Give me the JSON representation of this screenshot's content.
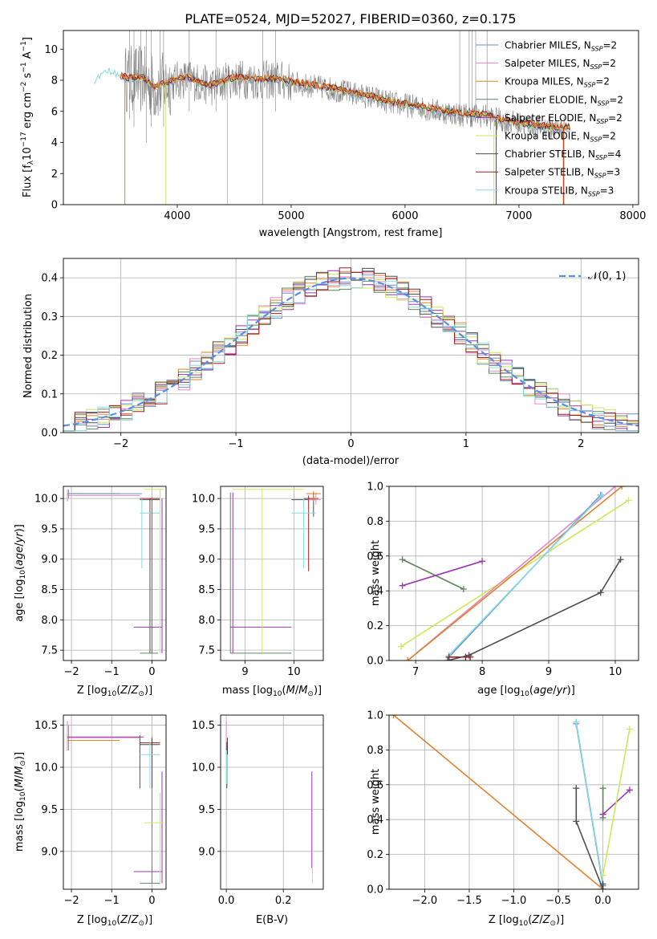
{
  "title": "PLATE=0524, MJD=52027, FIBERID=0360, z=0.175",
  "colors": {
    "chabrier_miles": "#6a8fd0",
    "salpeter_miles": "#e38ac4",
    "kroupa_miles": "#e0822e",
    "chabrier_elodie": "#5e8760",
    "salpeter_elodie": "#9b36b4",
    "kroupa_elodie": "#cde85a",
    "chabrier_stelib": "#4d4d4d",
    "salpeter_stelib": "#9c1b1b",
    "kroupa_stelib": "#86d9de",
    "data": "#808080",
    "normal": "#5b8ee0"
  },
  "chart_data": [
    {
      "type": "line",
      "xlabel": "wavelength [Angstrom, rest frame]",
      "ylabel": "Flux [f_λ10^-17 erg cm^-2 s^-1 A^-1]",
      "xlim": [
        3000,
        8050
      ],
      "ylim": [
        0,
        11.2
      ],
      "xticks": [
        4000,
        5000,
        6000,
        7000,
        8000
      ],
      "yticks": [
        0,
        2,
        4,
        6,
        8,
        10
      ],
      "grid": false,
      "legend": "top-right",
      "legend_entries": [
        {
          "name": "Chabrier MILES, N_SSP=2",
          "color_key": "chabrier_miles"
        },
        {
          "name": "Salpeter MILES, N_SSP=2",
          "color_key": "salpeter_miles"
        },
        {
          "name": "Kroupa MILES, N_SSP=2",
          "color_key": "kroupa_miles"
        },
        {
          "name": "Chabrier ELODIE, N_SSP=2",
          "color_key": "chabrier_elodie"
        },
        {
          "name": "Salpeter ELODIE, N_SSP=2",
          "color_key": "salpeter_elodie"
        },
        {
          "name": "Kroupa ELODIE, N_SSP=2",
          "color_key": "kroupa_elodie"
        },
        {
          "name": "Chabrier STELIB, N_SSP=4",
          "color_key": "chabrier_stelib"
        },
        {
          "name": "Salpeter STELIB, N_SSP=3",
          "color_key": "salpeter_stelib"
        },
        {
          "name": "Kroupa STELIB, N_SSP=3",
          "color_key": "kroupa_stelib"
        }
      ],
      "continuum_x": [
        3270,
        3400,
        3550,
        3700,
        3800,
        3950,
        4100,
        4200,
        4300,
        4500,
        4700,
        4900,
        5100,
        5300,
        5500,
        5700,
        5900,
        6100,
        6300,
        6500,
        6700,
        6900,
        7100,
        7300,
        7400
      ],
      "continuum_y": [
        8.0,
        8.6,
        8.1,
        8.1,
        7.5,
        7.9,
        8.1,
        7.8,
        7.6,
        8.1,
        8.0,
        8.0,
        7.7,
        7.5,
        7.2,
        6.9,
        6.5,
        6.3,
        6.0,
        5.8,
        5.7,
        5.3,
        5.1,
        4.9,
        4.9
      ]
    },
    {
      "type": "bar",
      "xlabel": "(data-model)/error",
      "ylabel": "Normed distribution",
      "xlim": [
        -2.5,
        2.5
      ],
      "ylim": [
        0,
        0.45
      ],
      "xticks": [
        -2,
        -1,
        0,
        1,
        2
      ],
      "yticks": [
        0.0,
        0.1,
        0.2,
        0.3,
        0.4
      ],
      "grid": true,
      "legend": "top-right",
      "legend_label": "𝒩(0, 1)",
      "bin_width": 0.1
    },
    {
      "type": "scatter",
      "xlabel": "Z [log10(Z/Z⊙)]",
      "ylabel": "age  [log10(age/yr)]",
      "xlim": [
        -2.2,
        0.35
      ],
      "ylim": [
        7.33,
        10.2
      ],
      "xticks": [
        -2,
        -1,
        0
      ],
      "yticks": [
        7.5,
        8.0,
        8.5,
        9.0,
        9.5,
        10.0
      ],
      "grid": true
    },
    {
      "type": "scatter",
      "xlabel": "mass [log10(M/M⊙)]",
      "ylabel": "",
      "xlim": [
        8.5,
        10.6
      ],
      "ylim": [
        7.33,
        10.2
      ],
      "xticks": [
        9,
        10
      ],
      "yticks": [
        7.5,
        8.0,
        8.5,
        9.0,
        9.5,
        10.0
      ],
      "grid": true
    },
    {
      "type": "line",
      "xlabel": "age  [log10(age/yr)]",
      "ylabel": "mass weight",
      "xlim": [
        6.6,
        10.35
      ],
      "ylim": [
        0,
        1
      ],
      "xticks": [
        7,
        8,
        9,
        10
      ],
      "yticks": [
        0.0,
        0.2,
        0.4,
        0.6,
        0.8,
        1.0
      ],
      "grid": true,
      "series": [
        {
          "color_key": "chabrier_elodie",
          "x": [
            6.8,
            7.72
          ],
          "y": [
            0.58,
            0.41
          ]
        },
        {
          "color_key": "salpeter_elodie",
          "x": [
            6.8,
            8.0
          ],
          "y": [
            0.43,
            0.57
          ]
        },
        {
          "color_key": "kroupa_elodie",
          "x": [
            6.78,
            10.2
          ],
          "y": [
            0.08,
            0.92
          ]
        },
        {
          "color_key": "salpeter_miles",
          "x": [
            6.88,
            10.0
          ],
          "y": [
            0.0,
            1.0
          ]
        },
        {
          "color_key": "kroupa_miles",
          "x": [
            6.88,
            10.1
          ],
          "y": [
            0.0,
            1.0
          ]
        },
        {
          "color_key": "chabrier_miles",
          "x": [
            7.5,
            9.78
          ],
          "y": [
            0.02,
            0.95
          ]
        },
        {
          "color_key": "kroupa_stelib",
          "x": [
            7.5,
            9.8
          ],
          "y": [
            0.03,
            0.95
          ]
        },
        {
          "color_key": "salpeter_stelib",
          "x": [
            7.5,
            7.75,
            7.82
          ],
          "y": [
            0.02,
            0.02,
            0.02
          ]
        },
        {
          "color_key": "chabrier_stelib",
          "x": [
            7.48,
            7.8,
            9.78,
            10.08
          ],
          "y": [
            0.0,
            0.03,
            0.39,
            0.58
          ]
        }
      ]
    },
    {
      "type": "scatter",
      "xlabel": "Z [log10(Z/Z⊙)]",
      "ylabel": "mass [log10(M/M⊙)]",
      "xlim": [
        -2.2,
        0.35
      ],
      "ylim": [
        8.55,
        10.62
      ],
      "xticks": [
        -2,
        -1,
        0
      ],
      "yticks": [
        9.0,
        9.5,
        10.0,
        10.5
      ],
      "grid": true
    },
    {
      "type": "scatter",
      "xlabel": "E(B-V)",
      "ylabel": "",
      "xlim": [
        -0.02,
        0.34
      ],
      "ylim": [
        8.55,
        10.62
      ],
      "xticks": [
        0.0,
        0.2
      ],
      "yticks": [
        9.0,
        9.5,
        10.0,
        10.5
      ],
      "grid": true
    },
    {
      "type": "line",
      "xlabel": "Z [log10(Z/Z⊙)]",
      "ylabel": "mass weight",
      "xlim": [
        -2.4,
        0.4
      ],
      "ylim": [
        0,
        1
      ],
      "xticks": [
        -2.0,
        -1.5,
        -1.0,
        -0.5,
        0.0
      ],
      "yticks": [
        0.0,
        0.2,
        0.4,
        0.6,
        0.8,
        1.0
      ],
      "grid": true,
      "series": [
        {
          "color_key": "kroupa_miles",
          "x": [
            -2.35,
            0.0
          ],
          "y": [
            1.0,
            0.0
          ]
        },
        {
          "color_key": "chabrier_miles",
          "x": [
            -0.3,
            0.0
          ],
          "y": [
            0.95,
            0.02
          ]
        },
        {
          "color_key": "kroupa_stelib",
          "x": [
            -0.3,
            0.0
          ],
          "y": [
            0.96,
            0.03
          ]
        },
        {
          "color_key": "chabrier_stelib",
          "x": [
            -0.3,
            -0.3,
            0.0,
            0.0
          ],
          "y": [
            0.58,
            0.39,
            0.0,
            0.03
          ]
        },
        {
          "color_key": "chabrier_elodie",
          "x": [
            0.0,
            0.0
          ],
          "y": [
            0.58,
            0.41
          ]
        },
        {
          "color_key": "salpeter_elodie",
          "x": [
            0.0,
            0.3
          ],
          "y": [
            0.43,
            0.57
          ]
        },
        {
          "color_key": "kroupa_elodie",
          "x": [
            0.0,
            0.3
          ],
          "y": [
            0.08,
            0.92
          ]
        }
      ]
    }
  ]
}
